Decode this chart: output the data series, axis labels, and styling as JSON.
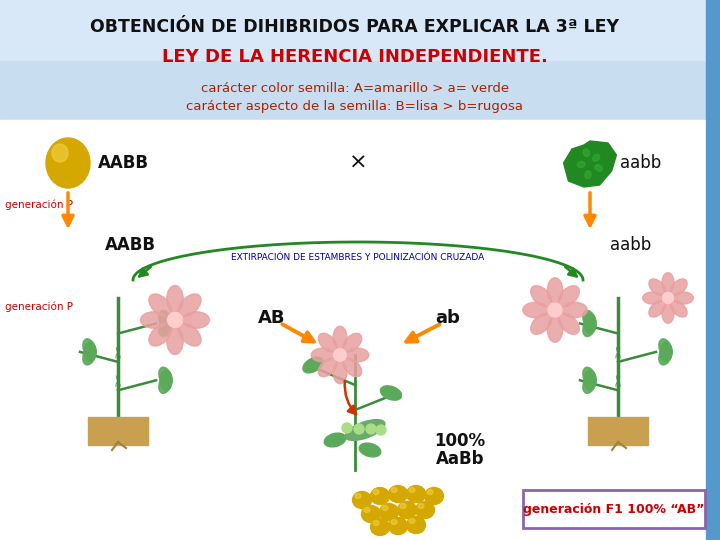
{
  "title1": "OBTENCIÓN DE DIHIBRIDOS PARA EXPLICAR LA 3ª LEY",
  "title2": "LEY DE LA HERENCIA INDEPENDIENTE.",
  "caract1_pre": "carácter ",
  "caract1_under": "color semilla",
  "caract1_post": ": A=amarillo > a= verde",
  "caract2_pre": "carácter ",
  "caract2_under": "aspecto de la semilla",
  "caract2_post": ": B=lisa > b=rugosa",
  "label_AABB_top": "AABB",
  "label_aabb_top": "aabb",
  "label_generacionP1": "generación P",
  "label_generacionP2": "generación P",
  "label_AABB_bot": "AABB",
  "label_aabb_bot": "aabb",
  "label_cross": "×",
  "label_extirpacion": "EXTIRPACIÓN DE ESTAMBRES Y POLINIZACIÓN CRUZADA",
  "label_AB": "AB",
  "label_ab": "ab",
  "label_result1": "100%",
  "label_result2": "AaBb",
  "label_f1": "generación F1 100% “AB”",
  "bg_header_color": "#c8ddf0",
  "bg_body_color": "#ffffff",
  "title1_color": "#111111",
  "title2_color": "#cc0000",
  "caract_color": "#aa2200",
  "generacion_color": "#cc0000",
  "extirpacion_color": "#000099",
  "arrow_orange": "#ff8800",
  "arrow_green": "#228822",
  "result_color": "#111111",
  "f1_color": "#cc0000",
  "f1_box_edge": "#8866aa",
  "right_border_color": "#5599cc",
  "yellow_seed": "#d4a800",
  "yellow_seed_hi": "#f0cc40",
  "green_seed": "#228822",
  "green_plant": "#3a8c3a",
  "pink_flower": "#e8a0a0",
  "soil_color": "#c8a050",
  "pod_color": "#6aaa6a",
  "pea_color": "#aadd88"
}
